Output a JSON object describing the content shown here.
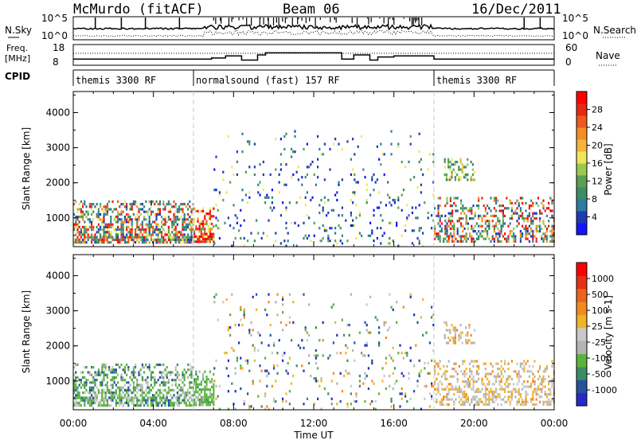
{
  "header": {
    "station": "McMurdo (fitACF)",
    "beam": "Beam 06",
    "date": "16/Dec/2011"
  },
  "summary_panels": {
    "nsky_label": "N.Sky",
    "nsearch_label": "N.Search",
    "freq_label_line1": "Freq.",
    "freq_label_line2": "[MHz]",
    "nave_label": "Nave",
    "cpid_label": "CPID",
    "nsky_ticks": [
      "10^5",
      "10^0"
    ],
    "nsearch_ticks": [
      "10^5",
      "10^0"
    ],
    "freq_ticks": [
      "18",
      "8"
    ],
    "nave_ticks": [
      "60",
      "0"
    ],
    "cpid_segments": [
      {
        "start": 0,
        "end": 6,
        "label": "themis 3300 RF"
      },
      {
        "start": 6,
        "end": 18,
        "label": "normalsound (fast) 157 RF"
      },
      {
        "start": 18,
        "end": 24,
        "label": "themis 3300 RF"
      }
    ]
  },
  "colorbars": {
    "power": {
      "label": "Power [dB]",
      "ticks": [
        "4",
        "8",
        "12",
        "16",
        "20",
        "24",
        "28"
      ],
      "colors": [
        "#1414ff",
        "#1f3cb4",
        "#2e7ba0",
        "#3c8c64",
        "#5aa050",
        "#9bc850",
        "#f0e65a",
        "#f5b43c",
        "#f58c28",
        "#eb5a1e",
        "#e62814",
        "#ff0000"
      ]
    },
    "velocity": {
      "label": "Velocity [m s-1]",
      "ticks": [
        "1000",
        "500",
        "100",
        "25",
        "-25",
        "-100",
        "-500",
        "-1000"
      ],
      "colors": [
        "#2828c8",
        "#2850a0",
        "#3c8c64",
        "#5ab43c",
        "#b4b4b4",
        "#c8c8c8",
        "#f0b428",
        "#f08c1e",
        "#eb641e",
        "#e63214",
        "#ff0000"
      ]
    }
  },
  "chart_data": {
    "type": "heatmap",
    "xlabel": "Time UT",
    "ylabel": "Slant Range [km]",
    "x_ticks": [
      "00:00",
      "04:00",
      "08:00",
      "12:00",
      "16:00",
      "20:00",
      "00:00"
    ],
    "x_range_hours": [
      0,
      24
    ],
    "y_ticks": [
      "1000",
      "2000",
      "3000",
      "4000"
    ],
    "y_range_km": [
      180,
      4600
    ],
    "freq_mhz": [
      {
        "start": 0,
        "end": 6.9,
        "value": 11
      },
      {
        "start": 6.9,
        "end": 7.6,
        "value": 11.5
      },
      {
        "start": 7.6,
        "end": 8.4,
        "value": 12.5
      },
      {
        "start": 8.4,
        "end": 9.2,
        "value": 10.5
      },
      {
        "start": 9.2,
        "end": 9.6,
        "value": 13
      },
      {
        "start": 9.6,
        "end": 13.4,
        "value": 14
      },
      {
        "start": 13.4,
        "end": 14.0,
        "value": 11
      },
      {
        "start": 14.0,
        "end": 14.8,
        "value": 13
      },
      {
        "start": 14.8,
        "end": 15.2,
        "value": 10.5
      },
      {
        "start": 15.2,
        "end": 16.0,
        "value": 12
      },
      {
        "start": 16.0,
        "end": 18.0,
        "value": 12.5
      },
      {
        "start": 18.0,
        "end": 24.0,
        "value": 11
      }
    ],
    "panels": [
      {
        "name": "power",
        "regions": [
          {
            "t0": 0.0,
            "t1": 6.0,
            "r0": 300,
            "r1": 1500,
            "level": "mixed-high"
          },
          {
            "t0": 6.0,
            "t1": 7.0,
            "r0": 300,
            "r1": 1300,
            "level": "high"
          },
          {
            "t0": 7.0,
            "t1": 18.0,
            "r0": 200,
            "r1": 3500,
            "level": "sparse-low"
          },
          {
            "t0": 18.0,
            "t1": 24.0,
            "r0": 300,
            "r1": 1600,
            "level": "mixed"
          },
          {
            "t0": 18.5,
            "t1": 20.0,
            "r0": 2100,
            "r1": 2700,
            "level": "mid"
          }
        ]
      },
      {
        "name": "velocity",
        "regions": [
          {
            "t0": 0.0,
            "t1": 6.0,
            "r0": 300,
            "r1": 1500,
            "level": "green-grey"
          },
          {
            "t0": 6.0,
            "t1": 7.0,
            "r0": 300,
            "r1": 1300,
            "level": "green"
          },
          {
            "t0": 7.0,
            "t1": 18.0,
            "r0": 200,
            "r1": 3500,
            "level": "sparse-mixed"
          },
          {
            "t0": 18.0,
            "t1": 24.0,
            "r0": 300,
            "r1": 1600,
            "level": "orange-grey"
          },
          {
            "t0": 18.5,
            "t1": 20.0,
            "r0": 2100,
            "r1": 2700,
            "level": "orange-grey"
          }
        ]
      }
    ]
  }
}
